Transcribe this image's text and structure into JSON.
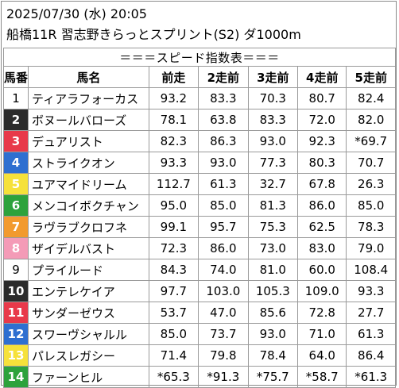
{
  "header": {
    "datetime": "2025/07/30 (水) 20:05",
    "race": "船橋11R 習志野きらっとスプリント(S2) ダ1000m"
  },
  "table": {
    "banner": "＝＝＝スピード指数表＝＝＝",
    "columns": [
      "馬番",
      "馬名",
      "前走",
      "2走前",
      "3走前",
      "4走前",
      "5走前"
    ],
    "rows": [
      {
        "no": "1",
        "name": "ティアラフォーカス",
        "r1": "93.2",
        "r2": "83.3",
        "r3": "70.3",
        "r4": "80.7",
        "r5": "82.4",
        "bg": "#ffffff",
        "fg": "#000000"
      },
      {
        "no": "2",
        "name": "ボヌールバローズ",
        "r1": "78.1",
        "r2": "63.8",
        "r3": "83.3",
        "r4": "72.0",
        "r5": "82.0",
        "bg": "#2b2b2b",
        "fg": "#ffffff"
      },
      {
        "no": "3",
        "name": "デュアリスト",
        "r1": "82.3",
        "r2": "86.3",
        "r3": "93.0",
        "r4": "92.3",
        "r5": "*69.7",
        "bg": "#e8394a",
        "fg": "#ffffff"
      },
      {
        "no": "4",
        "name": "ストライクオン",
        "r1": "93.3",
        "r2": "93.0",
        "r3": "77.3",
        "r4": "80.3",
        "r5": "70.7",
        "bg": "#2e6fd0",
        "fg": "#ffffff"
      },
      {
        "no": "5",
        "name": "ユアマイドリーム",
        "r1": "112.7",
        "r2": "61.3",
        "r3": "32.7",
        "r4": "67.8",
        "r5": "26.3",
        "bg": "#f6e13a",
        "fg": "#ffffff"
      },
      {
        "no": "6",
        "name": "メンコイボクチャン",
        "r1": "95.0",
        "r2": "85.0",
        "r3": "81.3",
        "r4": "86.0",
        "r5": "85.0",
        "bg": "#2da23c",
        "fg": "#ffffff"
      },
      {
        "no": "7",
        "name": "ラヴラブクロフネ",
        "r1": "99.1",
        "r2": "95.7",
        "r3": "75.3",
        "r4": "62.5",
        "r5": "78.3",
        "bg": "#f29a2e",
        "fg": "#ffffff"
      },
      {
        "no": "8",
        "name": "ザイデルバスト",
        "r1": "72.3",
        "r2": "86.0",
        "r3": "73.0",
        "r4": "83.0",
        "r5": "79.0",
        "bg": "#f49bb7",
        "fg": "#ffffff"
      },
      {
        "no": "9",
        "name": "プライルード",
        "r1": "84.3",
        "r2": "74.0",
        "r3": "81.0",
        "r4": "60.0",
        "r5": "108.4",
        "bg": "#ffffff",
        "fg": "#000000"
      },
      {
        "no": "10",
        "name": "エンテレケイア",
        "r1": "97.7",
        "r2": "103.0",
        "r3": "105.3",
        "r4": "109.0",
        "r5": "93.3",
        "bg": "#2b2b2b",
        "fg": "#ffffff"
      },
      {
        "no": "11",
        "name": "サンダーゼウス",
        "r1": "53.7",
        "r2": "47.0",
        "r3": "85.6",
        "r4": "72.8",
        "r5": "27.7",
        "bg": "#e8394a",
        "fg": "#ffffff"
      },
      {
        "no": "12",
        "name": "スワーヴシャルル",
        "r1": "85.0",
        "r2": "73.7",
        "r3": "93.0",
        "r4": "71.0",
        "r5": "61.3",
        "bg": "#2e6fd0",
        "fg": "#ffffff"
      },
      {
        "no": "13",
        "name": "パレスレガシー",
        "r1": "71.4",
        "r2": "79.8",
        "r3": "78.4",
        "r4": "64.0",
        "r5": "86.4",
        "bg": "#f6e13a",
        "fg": "#ffffff"
      },
      {
        "no": "14",
        "name": "ファーンヒル",
        "r1": "*65.3",
        "r2": "*91.3",
        "r3": "*75.7",
        "r4": "*58.7",
        "r5": "*61.3",
        "bg": "#2da23c",
        "fg": "#ffffff"
      }
    ]
  }
}
